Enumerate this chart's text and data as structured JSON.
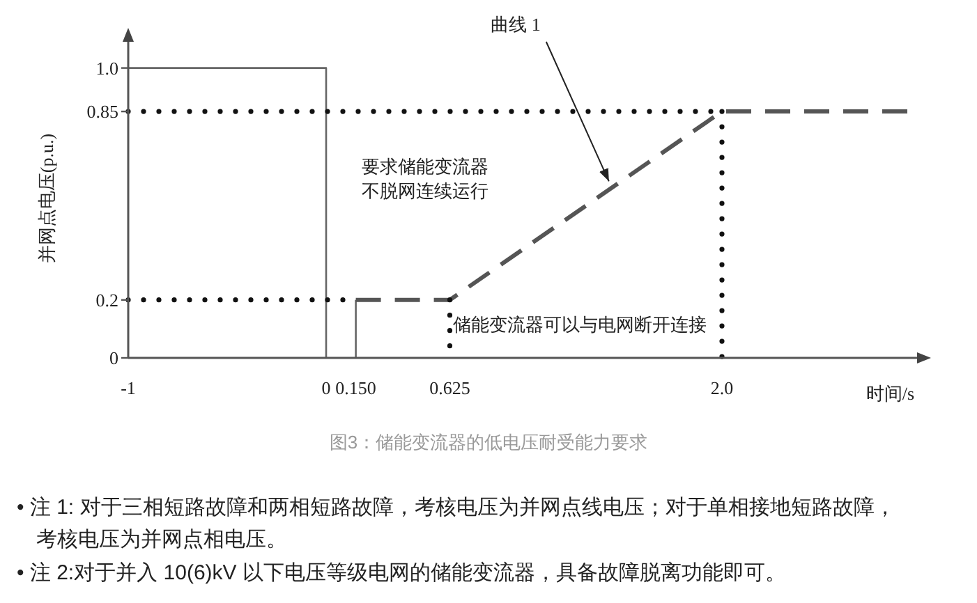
{
  "chart_data": {
    "type": "line",
    "xlabel": "时间/s",
    "ylabel": "并网点电压(p.u.)",
    "xlim": [
      -1,
      3
    ],
    "xticks": [
      -1,
      0,
      {
        "value": 0.15,
        "label": "0.150"
      },
      0.625,
      {
        "value": 2,
        "label": "2.0"
      }
    ],
    "ylim": [
      0,
      1.1
    ],
    "yticks": [
      0,
      0.2,
      0.85,
      {
        "value": 1,
        "label": "1.0"
      }
    ],
    "series": [
      {
        "line_style": "solid",
        "color": "#666666",
        "x": [
          -1,
          0,
          0
        ],
        "values": [
          1,
          1,
          0
        ]
      },
      {
        "line_style": "solid",
        "color": "#666666",
        "x": [
          0.15,
          0.15
        ],
        "values": [
          0,
          0.2
        ]
      },
      {
        "line_style": "dashed",
        "color": "#555555",
        "name": "曲线 1",
        "x": [
          0.15,
          0.625,
          2,
          3
        ],
        "values": [
          0.2,
          0.2,
          0.85,
          0.85
        ]
      },
      {
        "line_style": "dotted",
        "color": "#111111",
        "x": [
          -1,
          2
        ],
        "values": [
          0.85,
          0.85
        ]
      },
      {
        "line_style": "dotted",
        "color": "#111111",
        "x": [
          -1,
          0.15
        ],
        "values": [
          0.2,
          0.2
        ]
      },
      {
        "line_style": "dotted",
        "color": "#111111",
        "x": [
          0.625,
          0.625
        ],
        "values": [
          0.2,
          0
        ]
      },
      {
        "line_style": "dotted",
        "color": "#111111",
        "x": [
          2,
          2
        ],
        "values": [
          0.85,
          0
        ]
      }
    ],
    "annotations": [
      "要求储能变流器",
      "不脱网连续运行",
      "储能变流器可以与电网断开连接",
      "图3：储能变流器的低电压耐受能力要求",
      "• 注 1: 对于三相短路故障和两相短路故障，考核电压为并网点线电压；对于单相接地短路故障，考核电压为并网点相电压。",
      "• 注 2:对于并入 10(6)kV 以下电压等级电网的储能变流器，具备故障脱离功能即可。"
    ]
  }
}
